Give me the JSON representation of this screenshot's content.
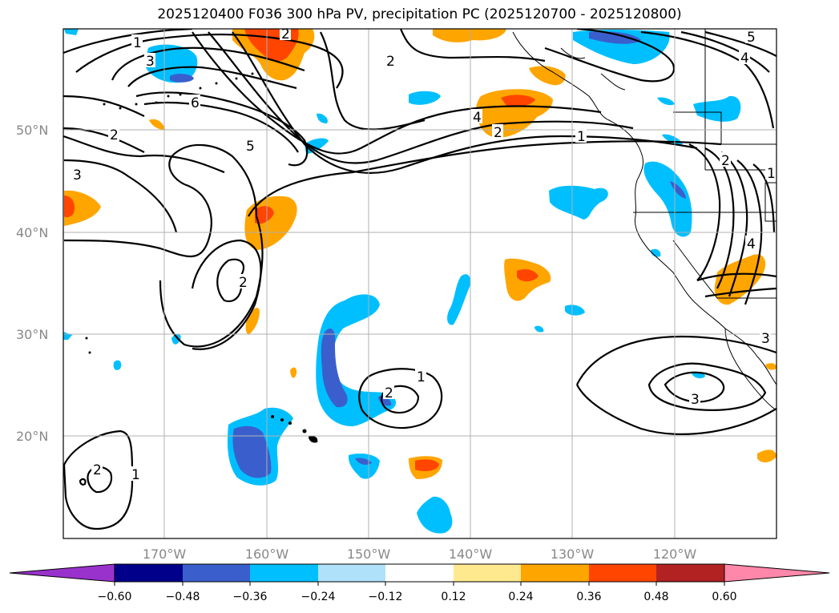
{
  "title": "2025120400 F036 300 hPa PV, precipitation PC (2025120700 - 2025120800)",
  "map": {
    "lat_labels": [
      "50°N",
      "40°N",
      "30°N",
      "20°N"
    ],
    "lon_labels": [
      "170°W",
      "160°W",
      "150°W",
      "140°W",
      "130°W",
      "120°W"
    ],
    "contour_labels": [
      "1",
      "3",
      "6",
      "5",
      "2",
      "2",
      "4",
      "2",
      "1",
      "4",
      "5",
      "3",
      "2",
      "2",
      "2",
      "1",
      "2",
      "3",
      "3",
      "4",
      "1",
      "2",
      "1"
    ],
    "colors": {
      "light_blue": "#00bfff",
      "mid_blue": "#3a5fcd",
      "orange": "#ffa500",
      "red_orange": "#ff4500",
      "grid": "#b0b0b0"
    }
  },
  "colorbar": {
    "tick_labels": [
      "−0.60",
      "−0.48",
      "−0.36",
      "−0.24",
      "−0.12",
      "0.12",
      "0.24",
      "0.36",
      "0.48",
      "0.60"
    ],
    "colors": [
      "#9932cc",
      "#00008b",
      "#3a5fcd",
      "#00bfff",
      "#afe1fa",
      "#ffffff",
      "#ffe98f",
      "#ffa500",
      "#ff4500",
      "#b22222",
      "#ff88aa"
    ]
  }
}
